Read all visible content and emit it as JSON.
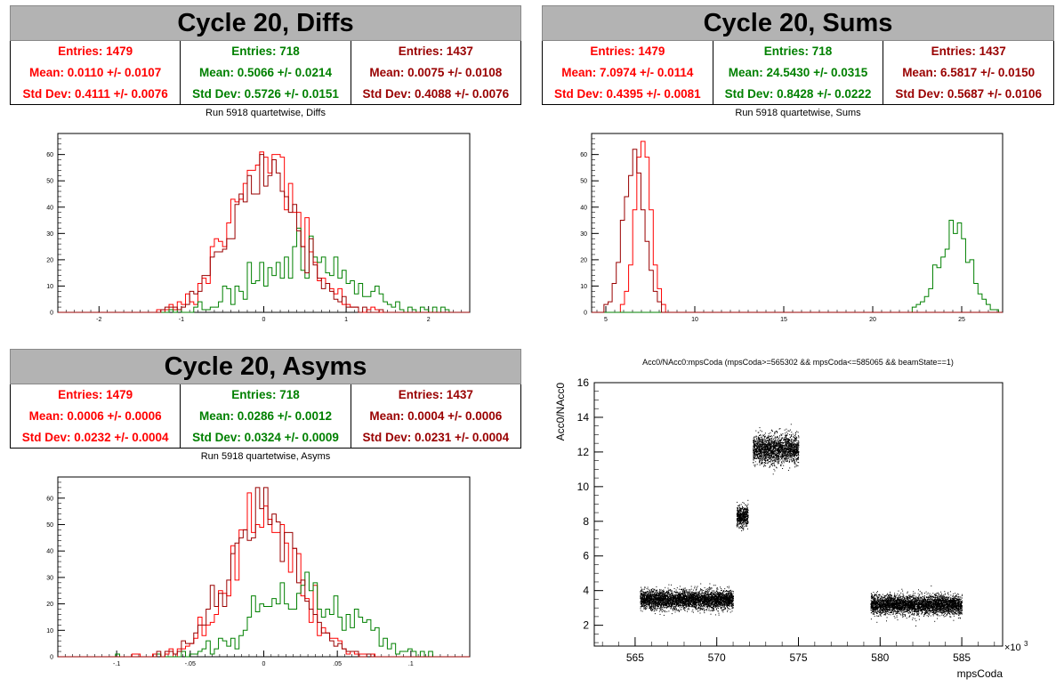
{
  "colors": {
    "red": "#ff0000",
    "green": "#008000",
    "darkred": "#990000",
    "title_bg": "#b3b3b3"
  },
  "chart_data": [
    {
      "type": "histogram",
      "title": "Cycle 20, Diffs",
      "subtitle": "Run 5918 quartetwise, Diffs",
      "xlim": [
        -2.5,
        2.5
      ],
      "ylim": [
        0,
        68
      ],
      "xticks": [
        -2,
        -1,
        0,
        1,
        2
      ],
      "yticks": [
        0,
        10,
        20,
        30,
        40,
        50,
        60
      ],
      "series": [
        {
          "color": "red",
          "stats": {
            "entries": "Entries: 1479",
            "mean": "Mean: 0.0110 +/- 0.0107",
            "std": "Std Dev: 0.4111 +/- 0.0076"
          },
          "entries": 1479,
          "mean": 0.011,
          "std": 0.4111,
          "peak": 61
        },
        {
          "color": "green",
          "stats": {
            "entries": "Entries: 718",
            "mean": "Mean: 0.5066 +/- 0.0214",
            "std": "Std Dev: 0.5726 +/- 0.0151"
          },
          "entries": 718,
          "mean": 0.5066,
          "std": 0.5726,
          "peak": 32
        },
        {
          "color": "darkred",
          "stats": {
            "entries": "Entries: 1437",
            "mean": "Mean: 0.0075 +/- 0.0108",
            "std": "Std Dev: 0.4088 +/- 0.0076"
          },
          "entries": 1437,
          "mean": 0.0075,
          "std": 0.4088,
          "peak": 60
        }
      ]
    },
    {
      "type": "histogram",
      "title": "Cycle 20, Sums",
      "subtitle": "Run 5918 quartetwise, Sums",
      "xlim": [
        4.2,
        27.3
      ],
      "ylim": [
        0,
        68
      ],
      "xticks": [
        5,
        10,
        15,
        20,
        25
      ],
      "yticks": [
        0,
        10,
        20,
        30,
        40,
        50,
        60
      ],
      "series": [
        {
          "color": "red",
          "stats": {
            "entries": "Entries: 1479",
            "mean": "Mean: 7.0974 +/- 0.0114",
            "std": "Std Dev: 0.4395 +/- 0.0081"
          },
          "entries": 1479,
          "mean": 7.0974,
          "std": 0.4395,
          "peak": 65
        },
        {
          "color": "green",
          "stats": {
            "entries": "Entries: 718",
            "mean": "Mean: 24.5430 +/- 0.0315",
            "std": "Std Dev: 0.8428 +/- 0.0222"
          },
          "entries": 718,
          "mean": 24.543,
          "std": 0.8428,
          "peak": 35
        },
        {
          "color": "darkred",
          "stats": {
            "entries": "Entries: 1437",
            "mean": "Mean: 6.5817 +/- 0.0150",
            "std": "Std Dev: 0.5687 +/- 0.0106"
          },
          "entries": 1437,
          "mean": 6.5817,
          "std": 0.5687,
          "peak": 62
        }
      ]
    },
    {
      "type": "histogram",
      "title": "Cycle 20, Asyms",
      "subtitle": "Run 5918 quartetwise, Asyms",
      "xlim": [
        -0.14,
        0.14
      ],
      "ylim": [
        0,
        68
      ],
      "xticks": [
        -0.1,
        -0.05,
        0,
        0.05,
        0.1
      ],
      "yticks": [
        0,
        10,
        20,
        30,
        40,
        50,
        60
      ],
      "series": [
        {
          "color": "red",
          "stats": {
            "entries": "Entries: 1479",
            "mean": "Mean: 0.0006 +/- 0.0006",
            "std": "Std Dev: 0.0232 +/- 0.0004"
          },
          "entries": 1479,
          "mean": 0.0006,
          "std": 0.0232,
          "peak": 62
        },
        {
          "color": "green",
          "stats": {
            "entries": "Entries: 718",
            "mean": "Mean: 0.0286 +/- 0.0012",
            "std": "Std Dev: 0.0324 +/- 0.0009"
          },
          "entries": 718,
          "mean": 0.0286,
          "std": 0.0324,
          "peak": 32
        },
        {
          "color": "darkred",
          "stats": {
            "entries": "Entries: 1437",
            "mean": "Mean: 0.0004 +/- 0.0006",
            "std": "Std Dev: 0.0231 +/- 0.0004"
          },
          "entries": 1437,
          "mean": 0.0004,
          "std": 0.0231,
          "peak": 64
        }
      ]
    },
    {
      "type": "scatter",
      "title": "Acc0/NAcc0:mpsCoda (mpsCoda>=565302 && mpsCoda<=585065 && beamState==1)",
      "xlabel": "mpsCoda",
      "ylabel": "Acc0/NAcc0",
      "x_exponent": "×10",
      "x_exponent_power": "3",
      "xlim": [
        562.5,
        587.5
      ],
      "ylim": [
        0.8,
        16
      ],
      "xticks": [
        565,
        570,
        575,
        580,
        585
      ],
      "yticks": [
        2,
        4,
        6,
        8,
        10,
        12,
        14,
        16
      ],
      "clusters": [
        {
          "x": [
            565.3,
            571.0
          ],
          "y_center": 3.5,
          "y_spread": 0.6
        },
        {
          "x": [
            571.2,
            571.9
          ],
          "y_center": 8.3,
          "y_spread": 0.7
        },
        {
          "x": [
            572.2,
            575.0
          ],
          "y_center": 12.2,
          "y_spread": 0.9
        },
        {
          "x": [
            579.4,
            585.0
          ],
          "y_center": 3.2,
          "y_spread": 0.6
        }
      ]
    }
  ]
}
